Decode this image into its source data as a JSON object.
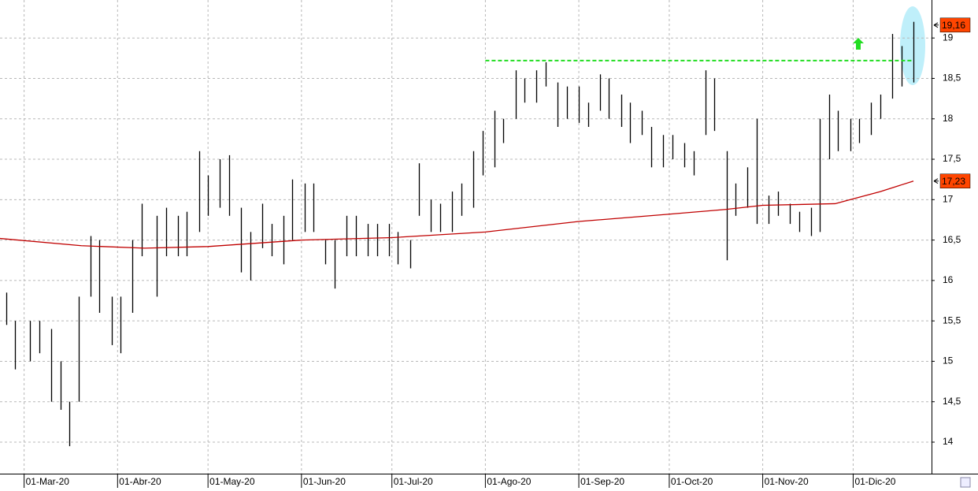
{
  "chart_data": {
    "type": "ohlc",
    "color": "#000000",
    "grid": true,
    "xlim": [
      "2020-02-22",
      "2020-12-27"
    ],
    "ylim": [
      13.61,
      19.47
    ],
    "yticks": [
      14,
      {
        "value": 14.5,
        "label": "14,5"
      },
      15,
      {
        "value": 15.5,
        "label": "15,5"
      },
      16,
      {
        "value": 16.5,
        "label": "16,5"
      },
      17,
      {
        "value": 17.5,
        "label": "17,5"
      },
      18,
      {
        "value": 18.5,
        "label": "18,5"
      },
      19
    ],
    "xticks": [
      {
        "value": "2020-03-01",
        "label": "01-Mar-20"
      },
      {
        "value": "2020-04-01",
        "label": "01-Abr-20"
      },
      {
        "value": "2020-05-01",
        "label": "01-May-20"
      },
      {
        "value": "2020-06-01",
        "label": "01-Jun-20"
      },
      {
        "value": "2020-07-01",
        "label": "01-Jul-20"
      },
      {
        "value": "2020-08-01",
        "label": "01-Ago-20"
      },
      {
        "value": "2020-09-01",
        "label": "01-Sep-20"
      },
      {
        "value": "2020-10-01",
        "label": "01-Oct-20"
      },
      {
        "value": "2020-11-01",
        "label": "01-Nov-20"
      },
      {
        "value": "2020-12-01",
        "label": "01-Dic-20"
      }
    ],
    "x": [
      "2020-02-24",
      "2020-02-27",
      "2020-03-03",
      "2020-03-06",
      "2020-03-10",
      "2020-03-13",
      "2020-03-16",
      "2020-03-19",
      "2020-03-23",
      "2020-03-26",
      "2020-03-30",
      "2020-04-02",
      "2020-04-06",
      "2020-04-09",
      "2020-04-14",
      "2020-04-17",
      "2020-04-21",
      "2020-04-24",
      "2020-04-28",
      "2020-05-01",
      "2020-05-05",
      "2020-05-08",
      "2020-05-12",
      "2020-05-15",
      "2020-05-19",
      "2020-05-22",
      "2020-05-26",
      "2020-05-29",
      "2020-06-02",
      "2020-06-05",
      "2020-06-09",
      "2020-06-12",
      "2020-06-16",
      "2020-06-19",
      "2020-06-23",
      "2020-06-26",
      "2020-06-30",
      "2020-07-03",
      "2020-07-07",
      "2020-07-10",
      "2020-07-14",
      "2020-07-17",
      "2020-07-21",
      "2020-07-24",
      "2020-07-28",
      "2020-07-31",
      "2020-08-04",
      "2020-08-07",
      "2020-08-11",
      "2020-08-14",
      "2020-08-18",
      "2020-08-21",
      "2020-08-25",
      "2020-08-28",
      "2020-09-01",
      "2020-09-04",
      "2020-09-08",
      "2020-09-11",
      "2020-09-15",
      "2020-09-18",
      "2020-09-22",
      "2020-09-25",
      "2020-09-29",
      "2020-10-02",
      "2020-10-06",
      "2020-10-09",
      "2020-10-13",
      "2020-10-16",
      "2020-10-20",
      "2020-10-23",
      "2020-10-27",
      "2020-10-30",
      "2020-11-03",
      "2020-11-06",
      "2020-11-10",
      "2020-11-13",
      "2020-11-17",
      "2020-11-20",
      "2020-11-23",
      "2020-11-26",
      "2020-11-30",
      "2020-12-03",
      "2020-12-07",
      "2020-12-10",
      "2020-12-14",
      "2020-12-17",
      "2020-12-21"
    ],
    "high": [
      15.85,
      15.5,
      15.5,
      15.5,
      15.4,
      15.0,
      14.5,
      15.8,
      16.55,
      16.5,
      15.8,
      15.8,
      16.5,
      16.95,
      16.8,
      16.9,
      16.8,
      16.85,
      17.6,
      17.3,
      17.5,
      17.55,
      16.9,
      16.6,
      16.95,
      16.7,
      16.8,
      17.25,
      17.2,
      17.2,
      16.5,
      16.5,
      16.8,
      16.8,
      16.7,
      16.7,
      16.7,
      16.6,
      16.5,
      17.45,
      17.0,
      16.95,
      17.1,
      17.2,
      17.6,
      17.85,
      18.1,
      18.0,
      18.6,
      18.5,
      18.6,
      18.7,
      18.45,
      18.4,
      18.4,
      18.2,
      18.55,
      18.5,
      18.3,
      18.2,
      18.1,
      17.9,
      17.8,
      17.8,
      17.7,
      17.6,
      18.6,
      18.5,
      17.6,
      17.2,
      17.4,
      18.0,
      17.05,
      17.1,
      16.95,
      16.85,
      16.9,
      18.0,
      18.3,
      18.1,
      18.0,
      18.0,
      18.2,
      18.3,
      19.05,
      18.9,
      19.2
    ],
    "low": [
      15.45,
      14.9,
      15.0,
      15.1,
      14.5,
      14.4,
      13.95,
      14.5,
      15.8,
      15.6,
      15.2,
      15.1,
      15.6,
      16.3,
      15.8,
      16.3,
      16.3,
      16.3,
      16.6,
      16.8,
      16.9,
      16.8,
      16.1,
      16.0,
      16.4,
      16.3,
      16.2,
      16.5,
      16.6,
      16.6,
      16.2,
      15.9,
      16.3,
      16.3,
      16.3,
      16.3,
      16.3,
      16.2,
      16.15,
      16.8,
      16.6,
      16.6,
      16.6,
      16.8,
      16.9,
      17.3,
      17.4,
      17.7,
      18.0,
      18.2,
      18.2,
      18.4,
      17.9,
      18.0,
      17.95,
      17.9,
      18.1,
      18.0,
      17.9,
      17.7,
      17.8,
      17.4,
      17.4,
      17.5,
      17.4,
      17.3,
      17.8,
      17.85,
      16.25,
      16.8,
      16.9,
      16.7,
      16.7,
      16.8,
      16.7,
      16.6,
      16.55,
      16.6,
      17.5,
      17.6,
      17.6,
      17.7,
      17.8,
      18.0,
      18.25,
      18.4,
      18.45
    ],
    "moving_average": {
      "color": "#c00000",
      "x": [
        "2020-02-22",
        "2020-03-20",
        "2020-04-10",
        "2020-05-01",
        "2020-06-01",
        "2020-07-01",
        "2020-08-01",
        "2020-09-01",
        "2020-10-01",
        "2020-10-20",
        "2020-11-01",
        "2020-11-25",
        "2020-12-10",
        "2020-12-21"
      ],
      "values": [
        16.52,
        16.43,
        16.4,
        16.42,
        16.5,
        16.53,
        16.6,
        16.73,
        16.82,
        16.88,
        16.93,
        16.95,
        17.1,
        17.23
      ]
    },
    "resistance": {
      "value": 18.72,
      "start": "2020-08-01",
      "end": "2020-12-21",
      "color": "#22dd22"
    },
    "price_tags": [
      {
        "value": 19.16,
        "label": "19,16"
      },
      {
        "value": 17.23,
        "label": "17,23"
      }
    ]
  }
}
